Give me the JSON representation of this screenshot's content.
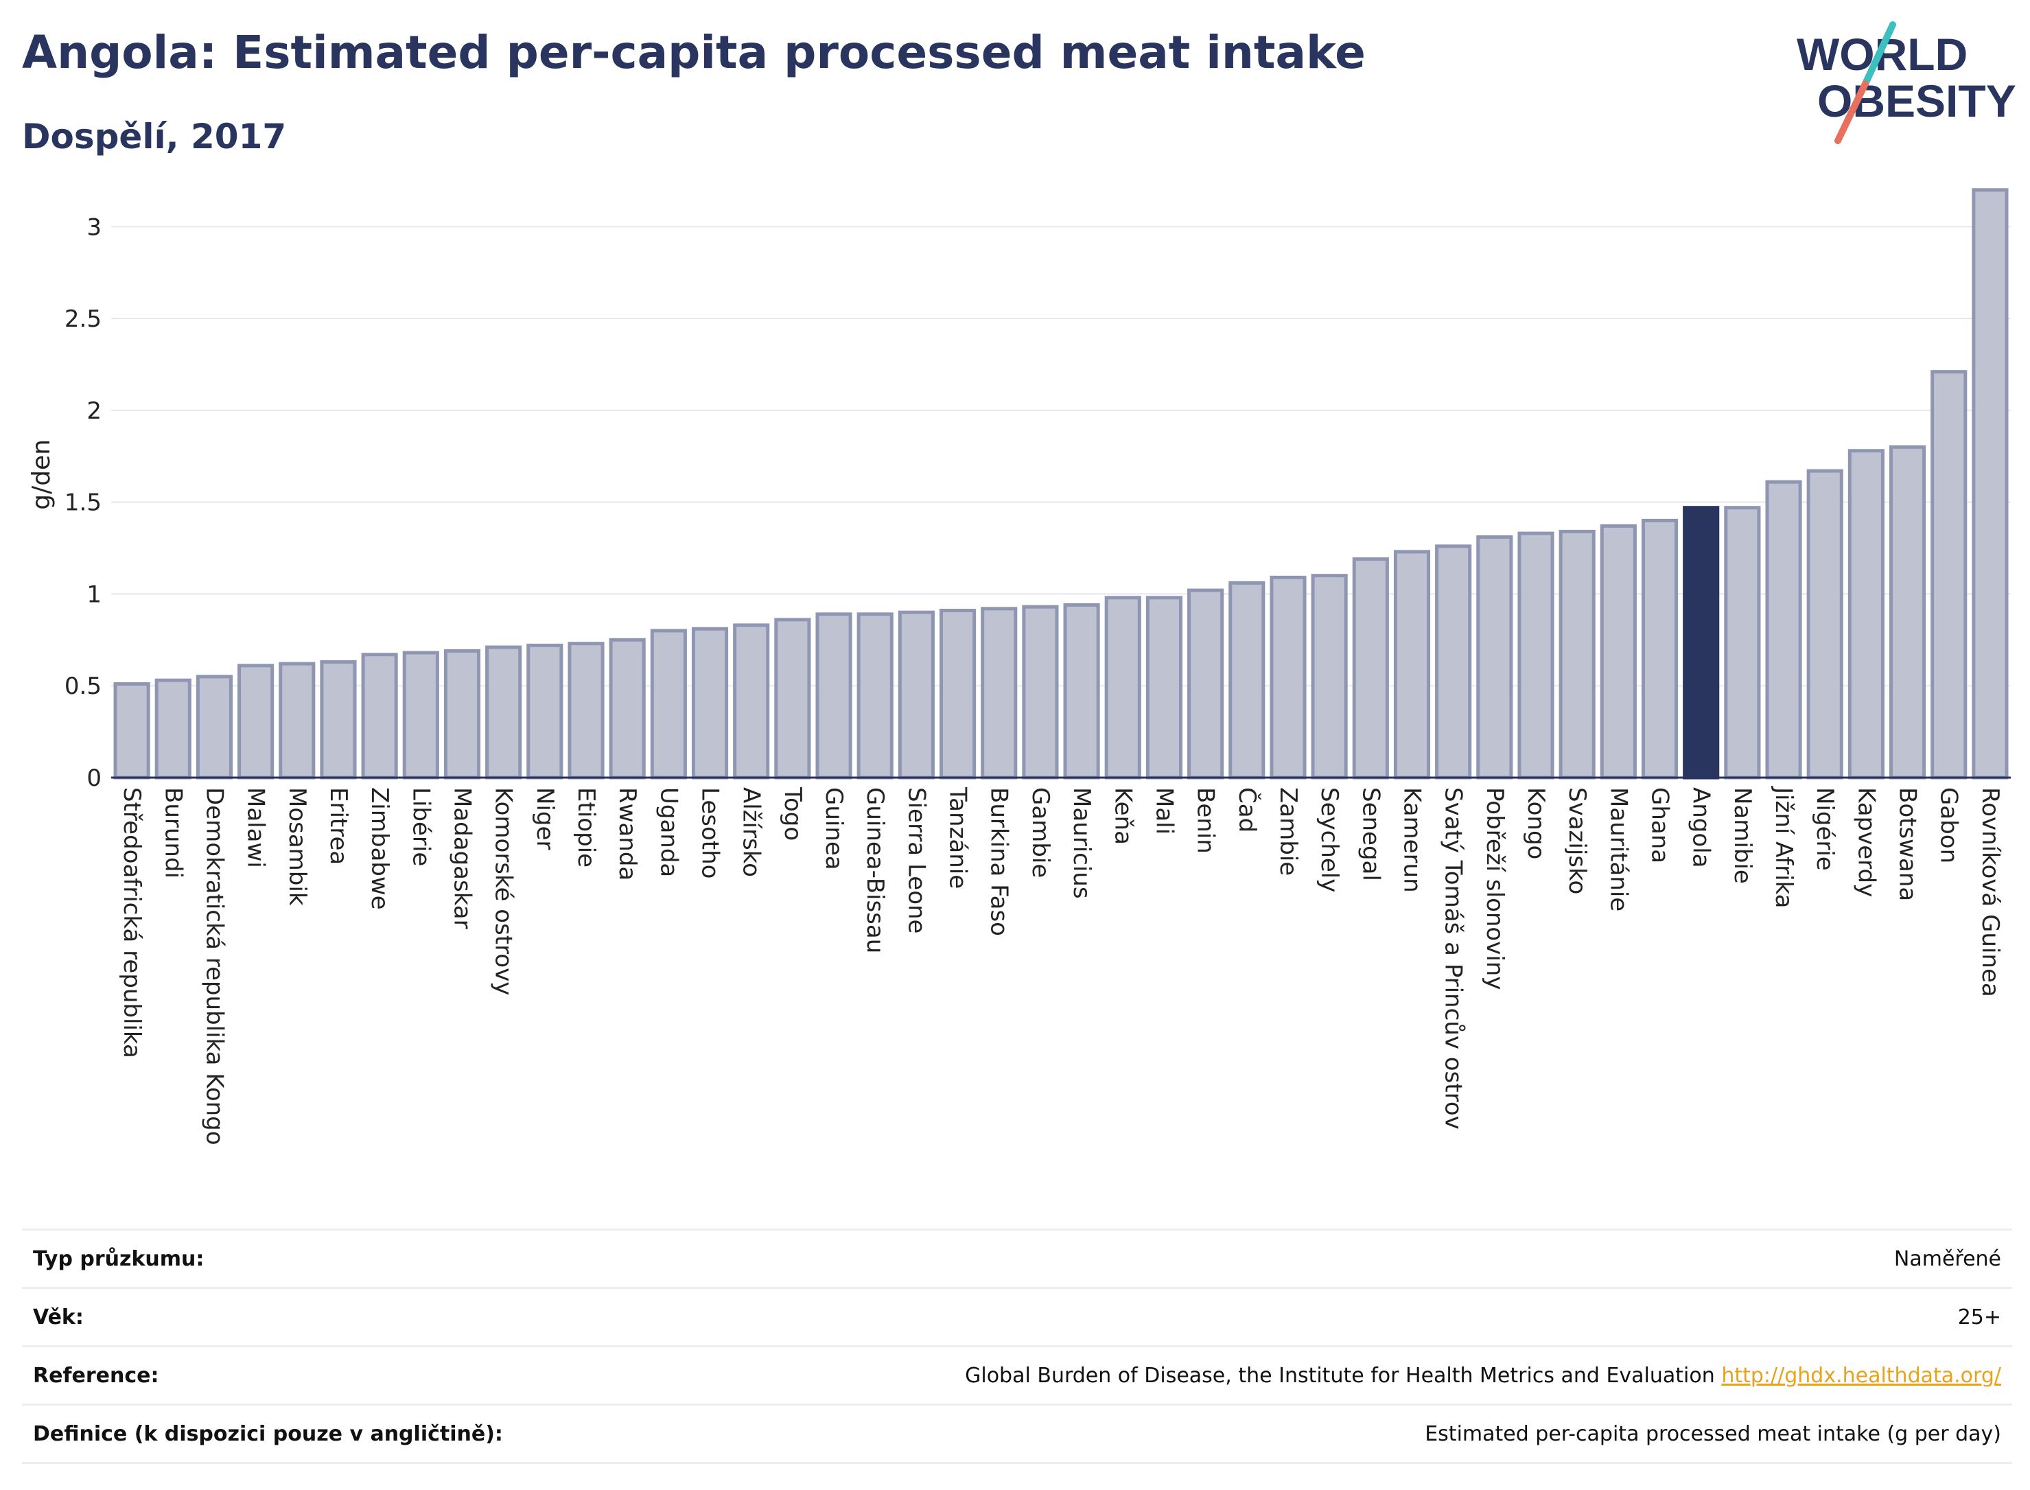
{
  "header": {
    "title": "Angola: Estimated per-capita processed meat intake",
    "subtitle": "Dospělí, 2017"
  },
  "logo": {
    "line1": "WORLD",
    "line2": "OBESITY",
    "icon": "slash-mark-icon",
    "colors": {
      "text": "#2a355f",
      "teal": "#3dbfbf",
      "coral": "#e8705f"
    }
  },
  "chart_data": {
    "type": "bar",
    "ylabel": "g/den",
    "ylim": [
      0,
      3.3
    ],
    "yticks": [
      0,
      0.5,
      1,
      1.5,
      2,
      2.5,
      3
    ],
    "ytick_labels": [
      "0",
      "0.5",
      "1",
      "1.5",
      "2",
      "2.5",
      "3"
    ],
    "grid": true,
    "highlight": "Angola",
    "colors": {
      "bar": "#bec2d1",
      "bar_edge": "#8f96b1",
      "highlight": "#2a355f"
    },
    "categories": [
      "Středoafrická republika",
      "Burundi",
      "Demokratická republika Kongo",
      "Malawi",
      "Mosambik",
      "Eritrea",
      "Zimbabwe",
      "Libérie",
      "Madagaskar",
      "Komorské ostrovy",
      "Niger",
      "Etiopie",
      "Rwanda",
      "Uganda",
      "Lesotho",
      "Alžírsko",
      "Togo",
      "Guinea",
      "Guinea-Bissau",
      "Sierra Leone",
      "Tanzánie",
      "Burkina Faso",
      "Gambie",
      "Mauricius",
      "Keňa",
      "Mali",
      "Benin",
      "Čad",
      "Zambie",
      "Seychely",
      "Senegal",
      "Kamerun",
      "Svatý Tomáš a Princův ostrov",
      "Pobřeží slonoviny",
      "Kongo",
      "Svazijsko",
      "Mauritánie",
      "Ghana",
      "Angola",
      "Namibie",
      "Jižní Afrika",
      "Nigérie",
      "Kapverdy",
      "Botswana",
      "Gabon",
      "Rovníková Guinea"
    ],
    "values": [
      0.51,
      0.53,
      0.55,
      0.61,
      0.62,
      0.63,
      0.67,
      0.68,
      0.69,
      0.71,
      0.72,
      0.73,
      0.75,
      0.8,
      0.81,
      0.83,
      0.86,
      0.89,
      0.89,
      0.9,
      0.91,
      0.92,
      0.93,
      0.94,
      0.98,
      0.98,
      1.02,
      1.06,
      1.09,
      1.1,
      1.19,
      1.23,
      1.26,
      1.31,
      1.33,
      1.34,
      1.37,
      1.4,
      1.47,
      1.47,
      1.61,
      1.67,
      1.78,
      1.8,
      2.21,
      3.2
    ]
  },
  "info": [
    {
      "label": "Typ průzkumu:",
      "value": "Naměřené"
    },
    {
      "label": "Věk:",
      "value": "25+"
    },
    {
      "label": "Reference:",
      "value": "Global Burden of Disease, the Institute for Health Metrics and Evaluation",
      "link": "http://ghdx.healthdata.org/"
    },
    {
      "label": "Definice (k dispozici pouze v angličtině):",
      "value": "Estimated per-capita processed meat intake (g per day)"
    }
  ]
}
